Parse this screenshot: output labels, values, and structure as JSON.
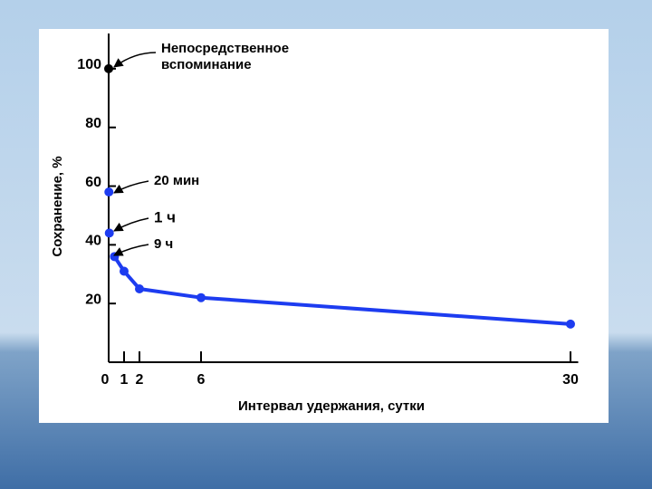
{
  "chart_data": {
    "type": "line",
    "x_label": "Интервал удержания, сутки",
    "y_label": "Сохранение, %",
    "xlim": [
      0,
      30.5
    ],
    "ylim": [
      0,
      112
    ],
    "xticks": [
      0,
      1,
      2,
      6,
      30
    ],
    "yticks": [
      20,
      40,
      60,
      80,
      100
    ],
    "annotations": [
      "Непосредственное",
      "вспоминание",
      "20 мин",
      "1 ч",
      "9 ч"
    ],
    "series": [
      {
        "color": "#000000",
        "line": false,
        "x": [
          0
        ],
        "values": [
          100
        ]
      },
      {
        "color": "#1d3cf0",
        "line": false,
        "x": [
          0.014,
          0.042
        ],
        "values": [
          58,
          44
        ]
      },
      {
        "color": "#1d3cf0",
        "line": true,
        "x": [
          0.375,
          1,
          2,
          6,
          30
        ],
        "values": [
          36,
          31,
          25,
          22,
          13
        ]
      }
    ]
  }
}
